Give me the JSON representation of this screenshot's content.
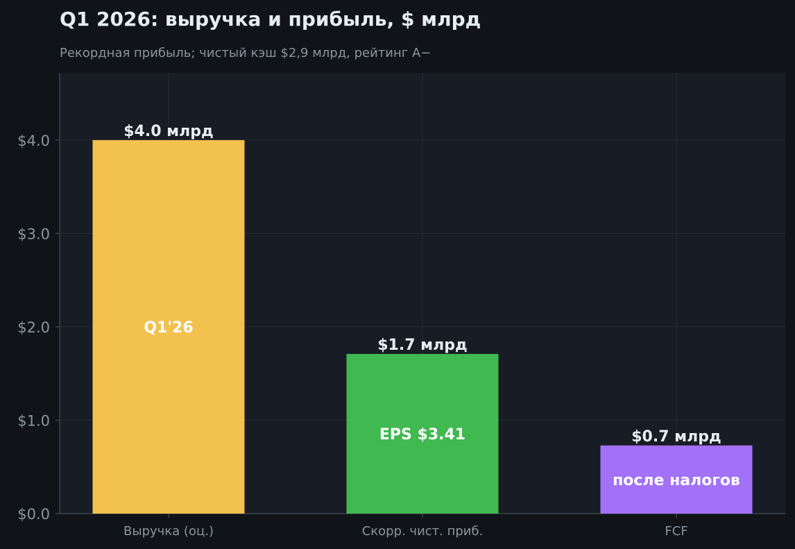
{
  "chart_data": {
    "type": "bar",
    "title": "Q1 2026: выручка и прибыль, $ млрд",
    "subtitle": "Рекордная прибыль; чистый кэш $2,9 млрд, рейтинг A−",
    "categories": [
      "Выручка (оц.)",
      "Скорр. чист. приб.",
      "FCF"
    ],
    "values": [
      4.0,
      1.71,
      0.73
    ],
    "value_labels": [
      "$4.0 млрд",
      "$1.7 млрд",
      "$0.7 млрд"
    ],
    "inner_labels": [
      "Q1'26",
      "EPS $3.41",
      "после налогов"
    ],
    "colors": [
      "#f2c14e",
      "#3fb950",
      "#a371f7"
    ],
    "ylim": [
      0,
      4.72
    ],
    "yticks": [
      0,
      1,
      2,
      3,
      4
    ],
    "ytick_labels": [
      "$0.0",
      "$1.0",
      "$2.0",
      "$3.0",
      "$4.0"
    ],
    "xlabel": "",
    "ylabel": "",
    "grid": true,
    "legend": "none"
  }
}
